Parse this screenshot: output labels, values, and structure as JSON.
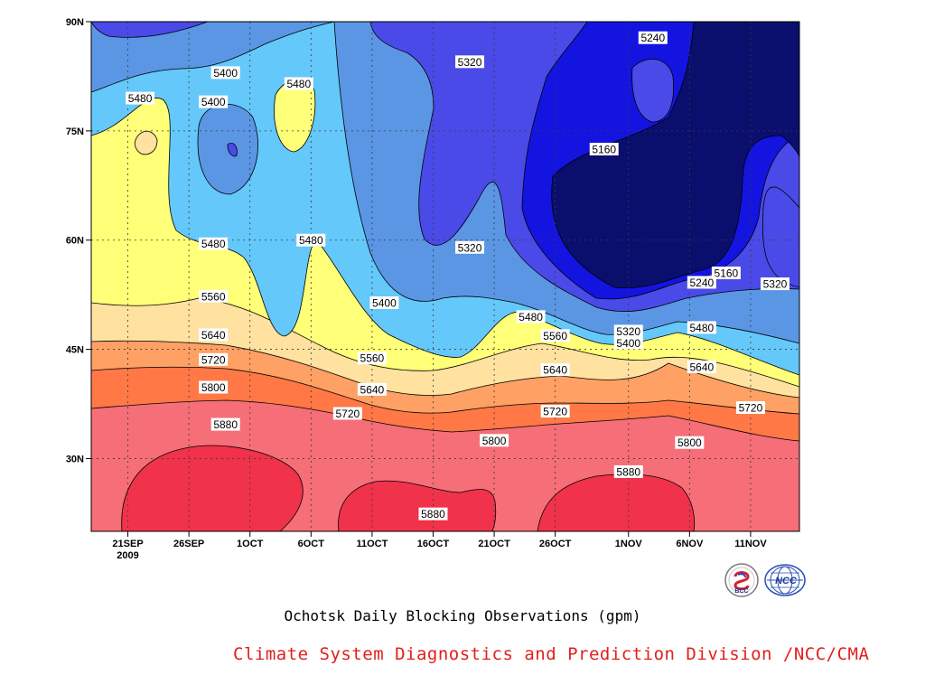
{
  "chart_data": {
    "type": "heatmap",
    "subtype": "filled-contour",
    "title": "Ochotsk Daily Blocking Observations (gpm)",
    "xlabel": "",
    "ylabel": "",
    "x_range": [
      "2009-09-18",
      "2009-11-15"
    ],
    "y_range": [
      20,
      90
    ],
    "x_ticks": [
      {
        "label": "21SEP",
        "label2": "2009",
        "date": "2009-09-21"
      },
      {
        "label": "26SEP",
        "date": "2009-09-26"
      },
      {
        "label": "1OCT",
        "date": "2009-10-01"
      },
      {
        "label": "6OCT",
        "date": "2009-10-06"
      },
      {
        "label": "11OCT",
        "date": "2009-10-11"
      },
      {
        "label": "16OCT",
        "date": "2009-10-16"
      },
      {
        "label": "21OCT",
        "date": "2009-10-21"
      },
      {
        "label": "26OCT",
        "date": "2009-10-26"
      },
      {
        "label": "1NOV",
        "date": "2009-11-01"
      },
      {
        "label": "6NOV",
        "date": "2009-11-06"
      },
      {
        "label": "11NOV",
        "date": "2009-11-11"
      }
    ],
    "y_ticks": [
      {
        "label": "30N",
        "value": 30
      },
      {
        "label": "45N",
        "value": 45
      },
      {
        "label": "60N",
        "value": 60
      },
      {
        "label": "75N",
        "value": 75
      },
      {
        "label": "90N",
        "value": 90
      }
    ],
    "grid": true,
    "levels": [
      5160,
      5240,
      5320,
      5400,
      5480,
      5560,
      5640,
      5720,
      5800,
      5880
    ],
    "colors": [
      "#0a0f6e",
      "#1414e0",
      "#4a4ae8",
      "#5a96e4",
      "#64c8fa",
      "#ffff78",
      "#ffe1a0",
      "#ffa064",
      "#ff7846",
      "#f56e78",
      "#f0324b"
    ],
    "contour_labels": [
      {
        "text": "5480",
        "date": "2009-09-22",
        "lat": 79.5
      },
      {
        "text": "5400",
        "date": "2009-09-29",
        "lat": 83.0
      },
      {
        "text": "5400",
        "date": "2009-09-28",
        "lat": 79.0
      },
      {
        "text": "5480",
        "date": "2009-10-05",
        "lat": 81.5
      },
      {
        "text": "5320",
        "date": "2009-10-19",
        "lat": 84.5
      },
      {
        "text": "5240",
        "date": "2009-11-03",
        "lat": 87.8
      },
      {
        "text": "5160",
        "date": "2009-10-30",
        "lat": 72.5
      },
      {
        "text": "5480",
        "date": "2009-09-28",
        "lat": 59.5
      },
      {
        "text": "5480",
        "date": "2009-10-06",
        "lat": 60.0
      },
      {
        "text": "5320",
        "date": "2009-10-19",
        "lat": 59.0
      },
      {
        "text": "5560",
        "date": "2009-09-28",
        "lat": 52.3
      },
      {
        "text": "5400",
        "date": "2009-10-12",
        "lat": 51.4
      },
      {
        "text": "5160",
        "date": "2009-11-09",
        "lat": 55.5
      },
      {
        "text": "5240",
        "date": "2009-11-07",
        "lat": 54.2
      },
      {
        "text": "5320",
        "date": "2009-11-13",
        "lat": 54.0
      },
      {
        "text": "5480",
        "date": "2009-10-24",
        "lat": 49.5
      },
      {
        "text": "5320",
        "date": "2009-11-01",
        "lat": 47.5
      },
      {
        "text": "5400",
        "date": "2009-11-01",
        "lat": 45.9
      },
      {
        "text": "5480",
        "date": "2009-11-07",
        "lat": 48.0
      },
      {
        "text": "5640",
        "date": "2009-09-28",
        "lat": 47.0
      },
      {
        "text": "5560",
        "date": "2009-10-26",
        "lat": 46.9
      },
      {
        "text": "5720",
        "date": "2009-09-28",
        "lat": 43.6
      },
      {
        "text": "5560",
        "date": "2009-10-11",
        "lat": 43.8
      },
      {
        "text": "5640",
        "date": "2009-10-26",
        "lat": 42.2
      },
      {
        "text": "5640",
        "date": "2009-11-07",
        "lat": 42.6
      },
      {
        "text": "5800",
        "date": "2009-09-28",
        "lat": 39.8
      },
      {
        "text": "5640",
        "date": "2009-10-11",
        "lat": 39.5
      },
      {
        "text": "5720",
        "date": "2009-10-09",
        "lat": 36.2
      },
      {
        "text": "5720",
        "date": "2009-10-26",
        "lat": 36.5
      },
      {
        "text": "5720",
        "date": "2009-11-11",
        "lat": 37.0
      },
      {
        "text": "5880",
        "date": "2009-09-29",
        "lat": 34.7
      },
      {
        "text": "5800",
        "date": "2009-10-21",
        "lat": 32.5
      },
      {
        "text": "5800",
        "date": "2009-11-06",
        "lat": 32.2
      },
      {
        "text": "5880",
        "date": "2009-11-01",
        "lat": 28.2
      },
      {
        "text": "5880",
        "date": "2009-10-16",
        "lat": 22.4
      }
    ]
  },
  "credit": "Climate System Diagnostics and Prediction Division /NCC/CMA",
  "logos": {
    "bcc": {
      "text": "BCC",
      "icon": "bcc-logo-icon"
    },
    "ncc": {
      "text": "NCC",
      "icon": "ncc-logo-icon"
    }
  }
}
